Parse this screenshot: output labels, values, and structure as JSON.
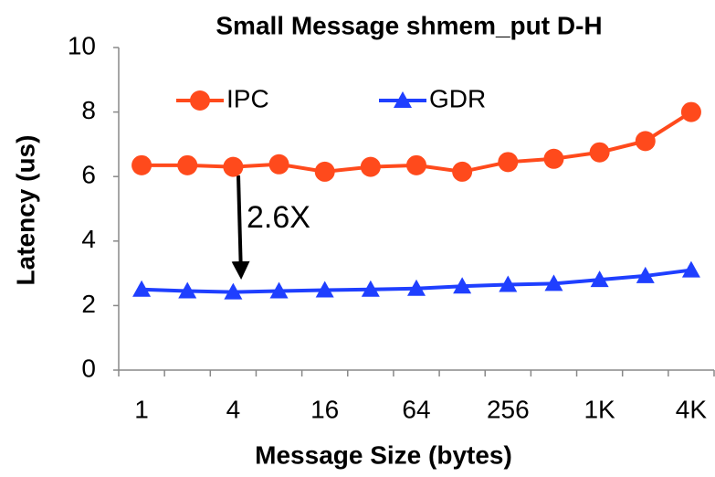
{
  "chart_data": {
    "type": "line",
    "title": "Small Message shmem_put D-H",
    "x_label": "Message Size (bytes)",
    "y_label": "Latency (us)",
    "categories": [
      "1",
      null,
      "4",
      null,
      "16",
      null,
      "64",
      null,
      "256",
      null,
      "1K",
      null,
      "4K"
    ],
    "series": [
      {
        "name": "IPC",
        "color": "#ff4a1c",
        "marker": "circle",
        "values": [
          6.35,
          6.35,
          6.3,
          6.38,
          6.15,
          6.3,
          6.35,
          6.15,
          6.45,
          6.55,
          6.75,
          7.1,
          8.0
        ]
      },
      {
        "name": "GDR",
        "color": "#1f3fff",
        "marker": "triangle",
        "values": [
          2.5,
          2.45,
          2.42,
          2.45,
          2.48,
          2.5,
          2.53,
          2.6,
          2.65,
          2.68,
          2.8,
          2.92,
          3.1
        ]
      }
    ],
    "ylim": [
      0,
      10
    ],
    "yticks": [
      0,
      2,
      4,
      6,
      8,
      10
    ],
    "grid": false,
    "legend": "top-left",
    "annotations": [
      {
        "text": "2.6X"
      }
    ]
  }
}
